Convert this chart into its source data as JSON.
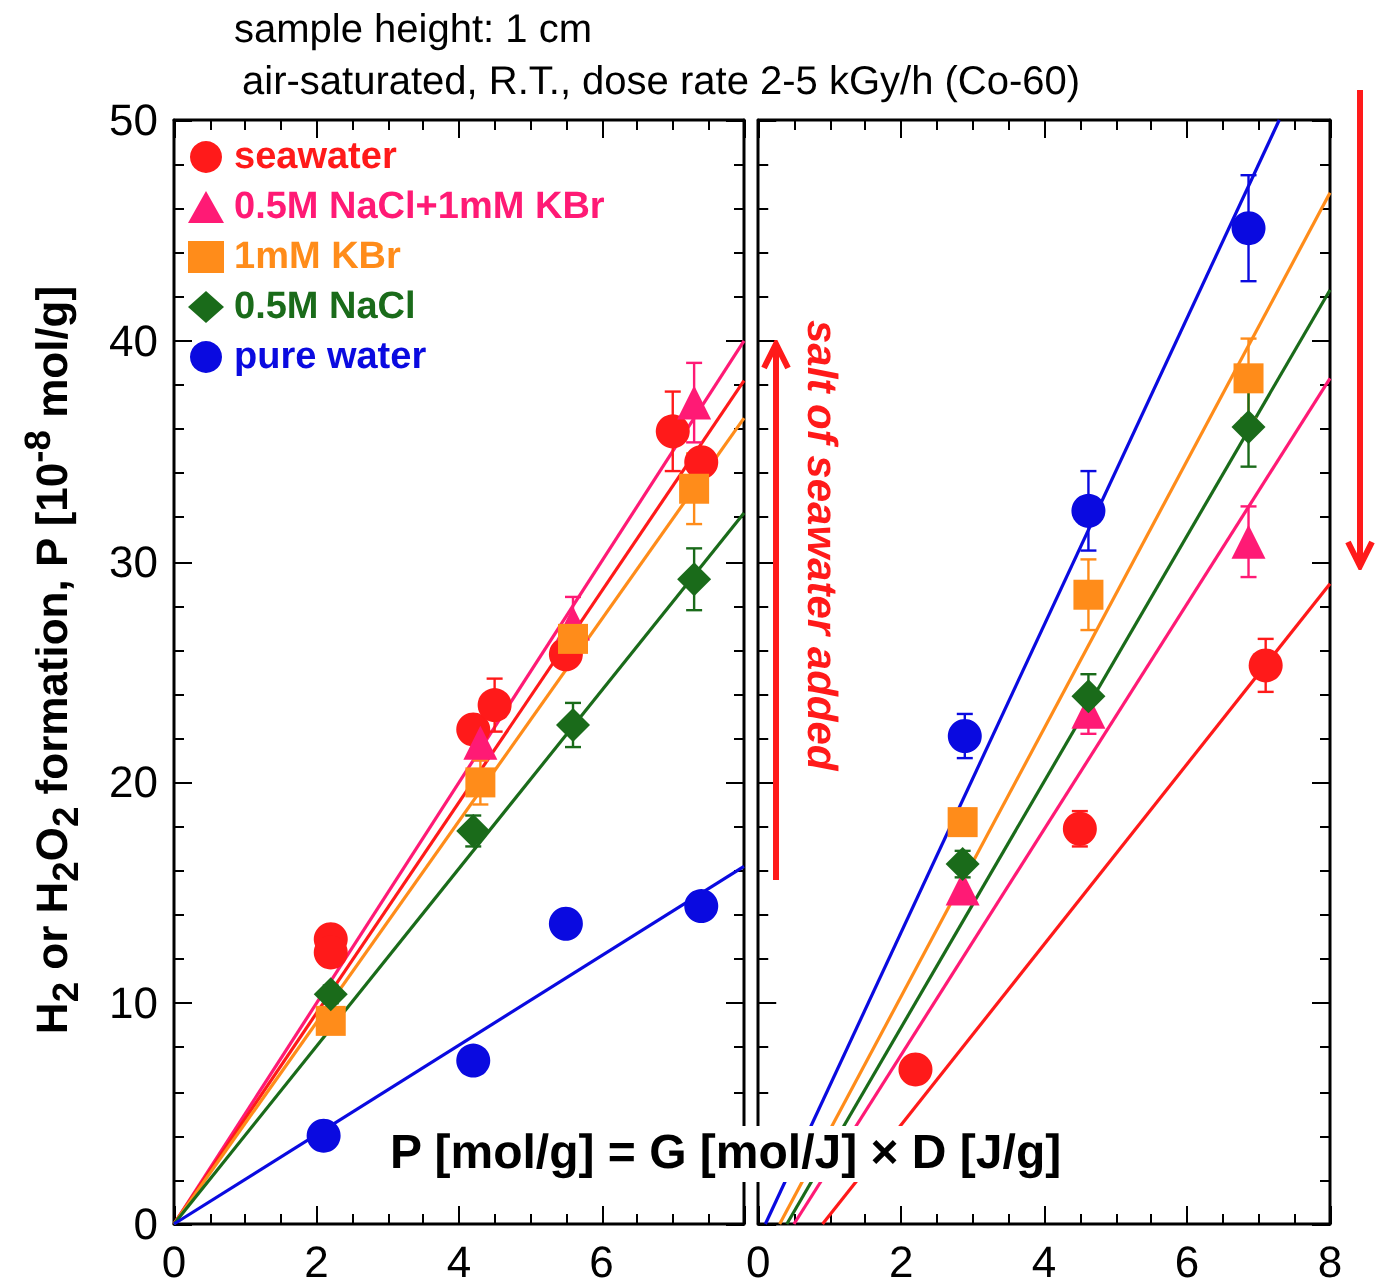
{
  "chart_data": [
    {
      "type": "scatter",
      "ylabel": "H$_{2}$ or H$_{2}$O$_{2}$ formation, P [10$^{-8}$ mol/g]",
      "legend": "top left",
      "xlim": [
        0,
        8
      ],
      "ylim": [
        0,
        50
      ],
      "xticks": [
        0,
        2,
        4,
        6,
        {
          "value": 8,
          "label": null
        }
      ],
      "yticks": [
        0,
        10,
        20,
        30,
        40,
        50
      ],
      "annotations": [
        "sample height: 1 cm",
        "air-saturated, R.T., dose rate 2-5 kGy/h (Co-60)",
        "P [mol/g] = G [mol/J] × D [J/g]"
      ],
      "series": [
        {
          "name": "seawater",
          "color": "#ff1a1a",
          "marker": "circle",
          "x": [
            2.2,
            2.2,
            4.2,
            4.5,
            5.5,
            7.0,
            7.4
          ],
          "values": [
            12.9,
            12.3,
            22.4,
            23.5,
            25.8,
            35.9,
            34.5
          ],
          "errors": [
            null,
            null,
            null,
            1.2,
            null,
            1.8,
            null
          ]
        },
        {
          "name": "0.5M NaCl+1mM KBr",
          "color": "#ff1a75",
          "marker": "triangle",
          "x": [
            4.3,
            5.6,
            7.3
          ],
          "values": [
            21.8,
            27.2,
            37.2
          ],
          "errors": [
            0.8,
            1.2,
            1.8
          ]
        },
        {
          "name": "1mM KBr",
          "color": "#ff8c1a",
          "marker": "square",
          "x": [
            2.2,
            4.3,
            5.6,
            7.3
          ],
          "values": [
            9.2,
            20.0,
            26.5,
            33.3
          ],
          "errors": [
            null,
            1.0,
            null,
            1.6
          ]
        },
        {
          "name": "0.5M NaCl",
          "color": "#1a6b1a",
          "marker": "diamond",
          "x": [
            2.2,
            4.2,
            5.6,
            7.3
          ],
          "values": [
            10.4,
            17.8,
            22.6,
            29.2
          ],
          "errors": [
            0.4,
            0.7,
            1.0,
            1.4
          ]
        },
        {
          "name": "pure water",
          "color": "#0a0ae0",
          "marker": "circle",
          "x": [
            2.1,
            4.2,
            5.5,
            7.4
          ],
          "values": [
            4.0,
            7.4,
            13.6,
            14.4
          ]
        },
        {
          "type": "line",
          "color": "#ff1a75",
          "x": [
            0,
            8
          ],
          "values": [
            0,
            40.0
          ]
        },
        {
          "type": "line",
          "color": "#ff1a1a",
          "x": [
            0,
            8
          ],
          "values": [
            0,
            38.2
          ]
        },
        {
          "type": "line",
          "color": "#ff8c1a",
          "x": [
            0,
            8
          ],
          "values": [
            0,
            36.5
          ]
        },
        {
          "type": "line",
          "color": "#1a6b1a",
          "x": [
            0,
            8
          ],
          "values": [
            0,
            32.2
          ]
        },
        {
          "type": "line",
          "color": "#0a0ae0",
          "x": [
            0,
            8
          ],
          "values": [
            0,
            16.2
          ]
        }
      ]
    },
    {
      "type": "scatter",
      "tick_labels": "x",
      "xlim": [
        0,
        8
      ],
      "ylim": [
        0,
        50
      ],
      "xticks": [
        0,
        2,
        4,
        6,
        8
      ],
      "yticks": [
        {
          "value": 0,
          "label": null
        },
        {
          "value": 10,
          "label": null
        },
        {
          "value": 20,
          "label": null
        },
        {
          "value": 30,
          "label": null
        },
        {
          "value": 40,
          "label": null
        },
        {
          "value": 50,
          "label": null
        }
      ],
      "annotations": [
        "salt of seawater added"
      ],
      "series": [
        {
          "color": "#ff1a1a",
          "marker": "circle",
          "x": [
            2.2,
            4.5,
            7.1
          ],
          "values": [
            7.0,
            17.9,
            25.3
          ],
          "errors": [
            null,
            0.8,
            1.2
          ]
        },
        {
          "color": "#ff1a75",
          "marker": "triangle",
          "x": [
            2.86,
            4.62,
            6.86
          ],
          "values": [
            15.2,
            23.2,
            30.9
          ],
          "errors": [
            null,
            1.0,
            1.6
          ]
        },
        {
          "color": "#ff8c1a",
          "marker": "square",
          "x": [
            2.86,
            4.62,
            6.86
          ],
          "values": [
            18.2,
            28.5,
            38.3
          ],
          "errors": [
            0.6,
            1.6,
            1.8
          ]
        },
        {
          "color": "#1a6b1a",
          "marker": "diamond",
          "x": [
            2.86,
            4.62,
            6.86
          ],
          "values": [
            16.3,
            23.9,
            36.1
          ],
          "errors": [
            0.6,
            1.0,
            1.8
          ]
        },
        {
          "color": "#0a0ae0",
          "marker": "circle",
          "x": [
            2.89,
            4.62,
            6.86
          ],
          "values": [
            22.1,
            32.3,
            45.1
          ],
          "errors": [
            1.0,
            1.8,
            2.4
          ]
        },
        {
          "type": "line",
          "color": "#0a0ae0",
          "x": [
            0.1,
            7.29
          ],
          "values": [
            0,
            50
          ]
        },
        {
          "type": "line",
          "color": "#ff8c1a",
          "x": [
            0.3,
            8
          ],
          "values": [
            0,
            46.7
          ]
        },
        {
          "type": "line",
          "color": "#1a6b1a",
          "x": [
            0.4,
            8
          ],
          "values": [
            0,
            42.3
          ]
        },
        {
          "type": "line",
          "color": "#ff1a75",
          "x": [
            0.5,
            8
          ],
          "values": [
            0,
            38.3
          ]
        },
        {
          "type": "line",
          "color": "#ff1a1a",
          "x": [
            0.9,
            8
          ],
          "values": [
            0,
            29.0
          ]
        }
      ]
    }
  ]
}
